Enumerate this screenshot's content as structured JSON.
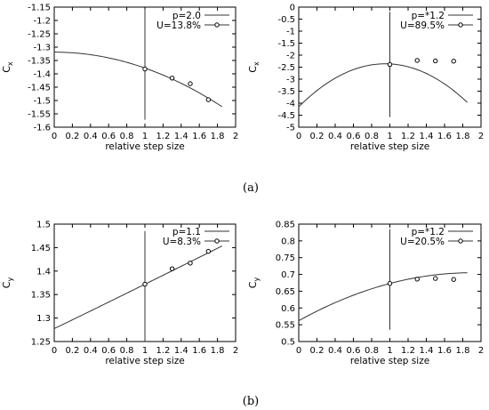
{
  "captions": [
    "(a)",
    "(b)"
  ],
  "chart_data": [
    {
      "type": "line",
      "panel": "a-left",
      "xlabel": "relative step size",
      "ylabel": "C",
      "ylabel_sub": "x",
      "xlim": [
        0,
        2
      ],
      "ylim": [
        -1.6,
        -1.15
      ],
      "xticks": [
        "0",
        "0.2",
        "0.4",
        "0.6",
        "0.8",
        "1",
        "1.2",
        "1.4",
        "1.6",
        "1.8",
        "2"
      ],
      "xtick_values": [
        0,
        0.2,
        0.4,
        0.6,
        0.8,
        1,
        1.2,
        1.4,
        1.6,
        1.8,
        2
      ],
      "yticks": [
        "-1.15",
        "-1.2",
        "-1.25",
        "-1.3",
        "-1.35",
        "-1.4",
        "-1.45",
        "-1.5",
        "-1.55",
        "-1.6"
      ],
      "ytick_values": [
        -1.15,
        -1.2,
        -1.25,
        -1.3,
        -1.35,
        -1.4,
        -1.45,
        -1.5,
        -1.55,
        -1.6
      ],
      "legend": [
        "p=2.0",
        "U=13.8%"
      ],
      "legend_position": "top-right",
      "fit": {
        "x0": 0,
        "x1": 1.85,
        "a": -1.3187,
        "b": 0.0,
        "c": -0.0597,
        "exp": 2.0
      },
      "points": {
        "x": [
          1.0,
          1.3,
          1.5,
          1.7
        ],
        "y": [
          -1.382,
          -1.416,
          -1.437,
          -1.497
        ]
      },
      "uncertainty_bar": {
        "x": 1.0,
        "low": -1.572,
        "high": -1.158
      }
    },
    {
      "type": "line",
      "panel": "a-right",
      "xlabel": "relative step size",
      "ylabel": "C",
      "ylabel_sub": "x",
      "xlim": [
        0,
        2
      ],
      "ylim": [
        -5,
        0
      ],
      "xticks": [
        "0",
        "0.2",
        "0.4",
        "0.6",
        "0.8",
        "1",
        "1.2",
        "1.4",
        "1.6",
        "1.8",
        "2"
      ],
      "xtick_values": [
        0,
        0.2,
        0.4,
        0.6,
        0.8,
        1,
        1.2,
        1.4,
        1.6,
        1.8,
        2
      ],
      "yticks": [
        "0",
        "-0.5",
        "-1",
        "-1.5",
        "-2",
        "-2.5",
        "-3",
        "-3.5",
        "-4",
        "-4.5",
        "-5"
      ],
      "ytick_values": [
        0,
        -0.5,
        -1,
        -1.5,
        -2,
        -2.5,
        -3,
        -3.5,
        -4,
        -4.5,
        -5
      ],
      "legend": [
        "p=*1.2",
        "U=89.5%"
      ],
      "legend_position": "top-right",
      "fit": {
        "x0": 0,
        "x1": 1.85,
        "a": -4.15,
        "b": 3.77,
        "c": -1.985,
        "exp": 2.0
      },
      "points": {
        "x": [
          1.0,
          1.3,
          1.5,
          1.7
        ],
        "y": [
          -2.39,
          -2.22,
          -2.24,
          -2.25
        ]
      },
      "uncertainty_bar": {
        "x": 1.0,
        "low": -4.58,
        "high": -0.2
      }
    },
    {
      "type": "line",
      "panel": "b-left",
      "xlabel": "relative step size",
      "ylabel": "C",
      "ylabel_sub": "y",
      "xlim": [
        0,
        2
      ],
      "ylim": [
        1.25,
        1.5
      ],
      "xticks": [
        "0",
        "0.2",
        "0.4",
        "0.6",
        "0.8",
        "1",
        "1.2",
        "1.4",
        "1.6",
        "1.8",
        "2"
      ],
      "xtick_values": [
        0,
        0.2,
        0.4,
        0.6,
        0.8,
        1,
        1.2,
        1.4,
        1.6,
        1.8,
        2
      ],
      "yticks": [
        "1.5",
        "1.45",
        "1.4",
        "1.35",
        "1.3",
        "1.25"
      ],
      "ytick_values": [
        1.5,
        1.45,
        1.4,
        1.35,
        1.3,
        1.25
      ],
      "legend": [
        "p=1.1",
        "U=8.3%"
      ],
      "legend_position": "top-right",
      "fit": {
        "x0": 0,
        "x1": 1.85,
        "a": 1.2775,
        "b": 0.0858,
        "c": 0.0087,
        "exp": 1.1
      },
      "points": {
        "x": [
          1.0,
          1.3,
          1.5,
          1.7
        ],
        "y": [
          1.372,
          1.405,
          1.417,
          1.442
        ]
      },
      "uncertainty_bar": {
        "x": 1.0,
        "low": 1.25,
        "high": 1.485
      }
    },
    {
      "type": "line",
      "panel": "b-right",
      "xlabel": "relative step size",
      "ylabel": "C",
      "ylabel_sub": "y",
      "xlim": [
        0,
        2
      ],
      "ylim": [
        0.5,
        0.85
      ],
      "xticks": [
        "0",
        "0.2",
        "0.4",
        "0.6",
        "0.8",
        "1",
        "1.2",
        "1.4",
        "1.6",
        "1.8",
        "2"
      ],
      "xtick_values": [
        0,
        0.2,
        0.4,
        0.6,
        0.8,
        1,
        1.2,
        1.4,
        1.6,
        1.8,
        2
      ],
      "yticks": [
        "0.85",
        "0.8",
        "0.75",
        "0.7",
        "0.65",
        "0.6",
        "0.55",
        "0.5"
      ],
      "ytick_values": [
        0.85,
        0.8,
        0.75,
        0.7,
        0.65,
        0.6,
        0.55,
        0.5
      ],
      "legend": [
        "p=*1.2",
        "U=20.5%"
      ],
      "legend_position": "top-right",
      "fit": {
        "x0": 0,
        "x1": 1.85,
        "a": 0.562,
        "b": 0.1507,
        "c": -0.0397,
        "exp": 2.0
      },
      "points": {
        "x": [
          1.0,
          1.3,
          1.5,
          1.7
        ],
        "y": [
          0.673,
          0.686,
          0.688,
          0.685
        ]
      },
      "uncertainty_bar": {
        "x": 1.0,
        "low": 0.535,
        "high": 0.835
      }
    }
  ]
}
